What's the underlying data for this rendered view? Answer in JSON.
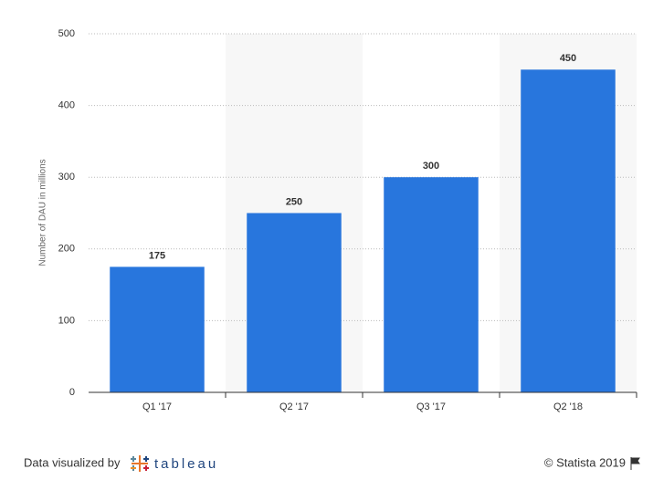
{
  "chart_data": {
    "type": "bar",
    "y_label": "Number of DAU in millions",
    "categories": [
      "Q1 '17",
      "Q2 '17",
      "Q3 '17",
      "Q2 '18"
    ],
    "values": [
      175,
      250,
      300,
      450
    ],
    "color": "#2876dd",
    "ylim": [
      0,
      500
    ],
    "yticks": [
      0,
      100,
      200,
      300,
      400,
      500
    ],
    "grid": true
  },
  "footer": {
    "credit": "Data visualized by",
    "brand": "tableau",
    "copyright": "© Statista 2019"
  }
}
